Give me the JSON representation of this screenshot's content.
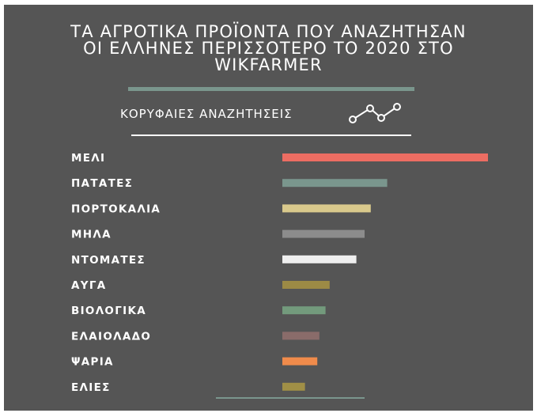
{
  "title_lines": [
    "ΤΑ ΑΓΡΟΤΙΚΑ ΠΡΟΪΟΝΤΑ ΠΟΥ ΑΝΑΖΗΤΗΣΑΝ",
    "ΟΙ ΕΛΛΗΝΕΣ ΠΕΡΙΣΣΟΤΕΡΟ ΤΟ 2020 ΣΤΟ",
    "WIKFARMER"
  ],
  "subtitle": "ΚΟΡΥΦΑΙΕΣ ΑΝΑΖΗΤΗΣΕΙΣ",
  "icon": "trend-line-icon",
  "colors": {
    "background": "#555555",
    "accent_line": "#7a968d",
    "text": "#ffffff"
  },
  "chart_data": {
    "type": "bar",
    "orientation": "horizontal",
    "title": "ΤΑ ΑΓΡΟΤΙΚΑ ΠΡΟΪΟΝΤΑ ΠΟΥ ΑΝΑΖΗΤΗΣΑΝ ΟΙ ΕΛΛΗΝΕΣ ΠΕΡΙΣΣΟΤΕΡΟ ΤΟ 2020 ΣΤΟ WIKFARMER",
    "subtitle": "ΚΟΡΥΦΑΙΕΣ ΑΝΑΖΗΤΗΣΕΙΣ",
    "categories": [
      "ΜΕΛΙ",
      "ΠΑΤΑΤΕΣ",
      "ΠΟΡΤΟΚΑΛΙΑ",
      "ΜΗΛΑ",
      "ΝΤΟΜΑΤΕΣ",
      "ΑΥΓΑ",
      "ΒΙΟΛΟΓΙΚΑ",
      "ΕΛΑΙΟΛΑΔΟ",
      "ΨΑΡΙΑ",
      "ΕΛΙΕΣ"
    ],
    "values": [
      100,
      51,
      43,
      40,
      36,
      23,
      21,
      18,
      17,
      11
    ],
    "colors": [
      "#ec6d62",
      "#7a968d",
      "#d9c98c",
      "#8c8c8c",
      "#eeeeee",
      "#9c8a45",
      "#739a7c",
      "#8a6c6a",
      "#f08b4b",
      "#a08f46"
    ],
    "xlim": [
      0,
      100
    ],
    "axis_labels_shown": false,
    "grid": false,
    "legend": "none"
  }
}
